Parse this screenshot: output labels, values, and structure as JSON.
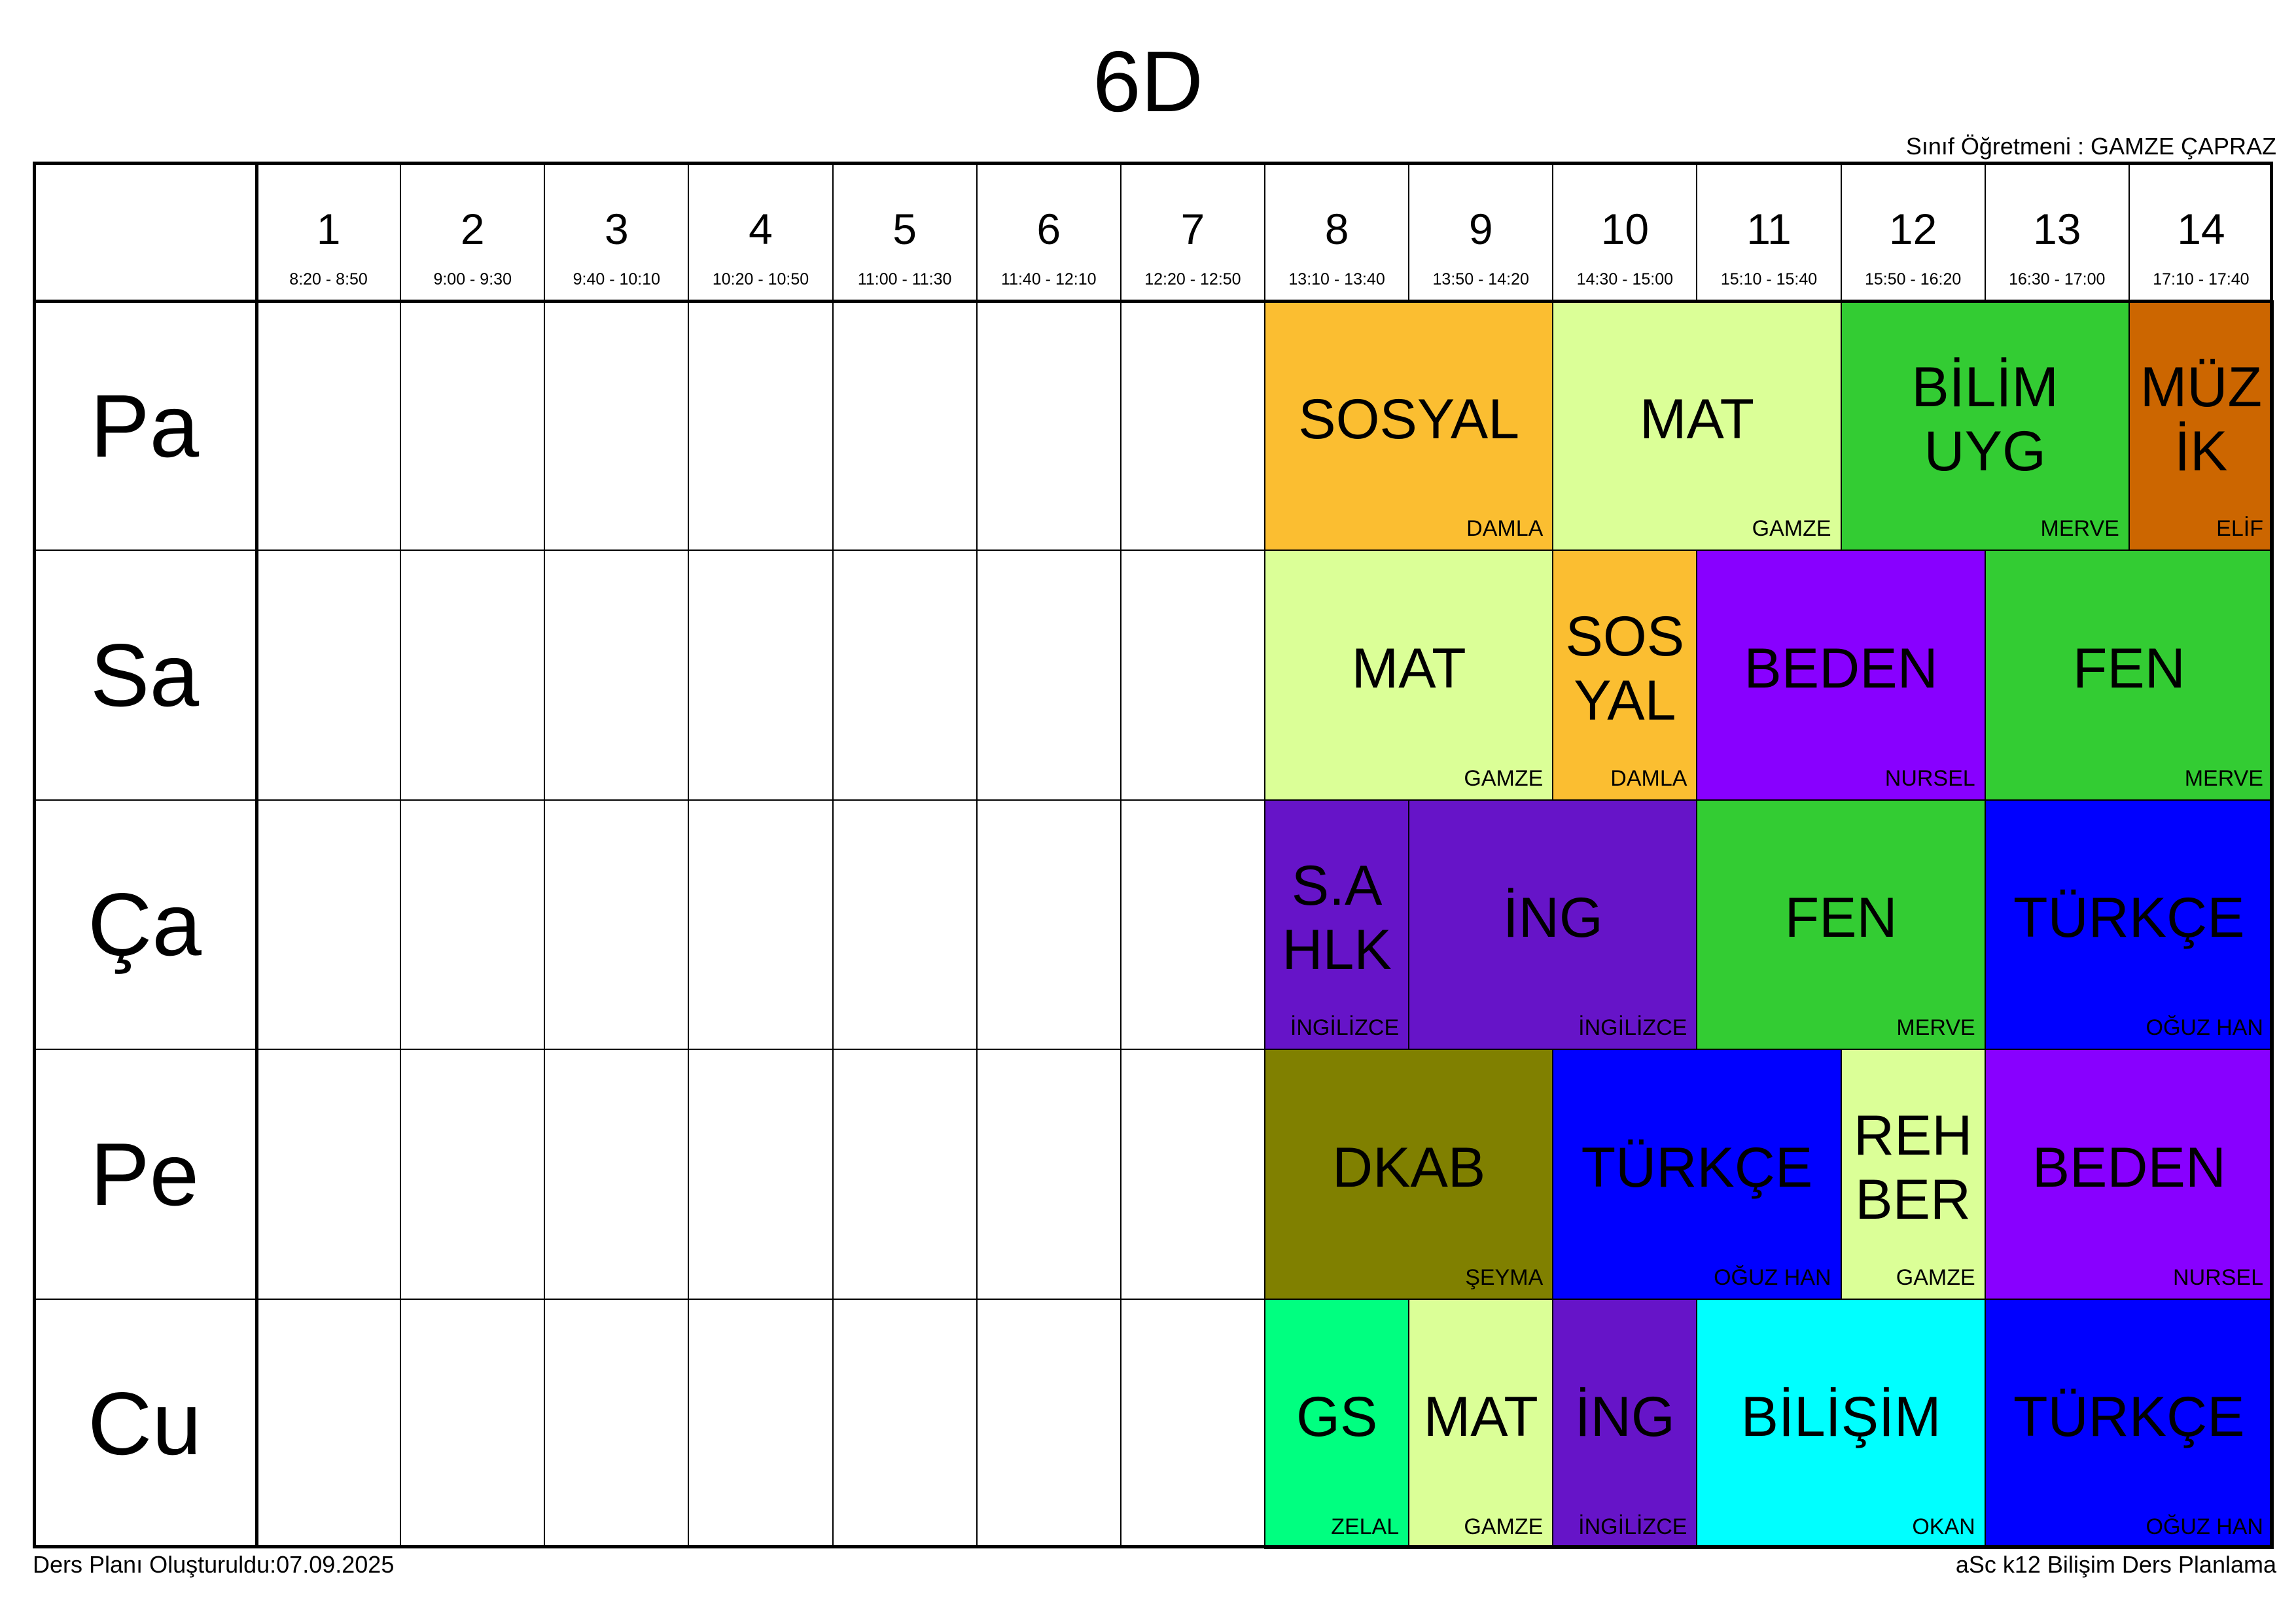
{
  "title": "6D",
  "class_teacher": "Sınıf Öğretmeni : GAMZE ÇAPRAZ",
  "footer_left": "Ders Planı Oluşturuldu:07.09.2025",
  "footer_right": "aSc k12 Bilişim Ders Planlama",
  "periods": [
    {
      "num": "1",
      "time": "8:20 - 8:50"
    },
    {
      "num": "2",
      "time": "9:00 - 9:30"
    },
    {
      "num": "3",
      "time": "9:40 - 10:10"
    },
    {
      "num": "4",
      "time": "10:20 - 10:50"
    },
    {
      "num": "5",
      "time": "11:00 - 11:30"
    },
    {
      "num": "6",
      "time": "11:40 - 12:10"
    },
    {
      "num": "7",
      "time": "12:20 - 12:50"
    },
    {
      "num": "8",
      "time": "13:10 - 13:40"
    },
    {
      "num": "9",
      "time": "13:50 - 14:20"
    },
    {
      "num": "10",
      "time": "14:30 - 15:00"
    },
    {
      "num": "11",
      "time": "15:10 - 15:40"
    },
    {
      "num": "12",
      "time": "15:50 - 16:20"
    },
    {
      "num": "13",
      "time": "16:30 - 17:00"
    },
    {
      "num": "14",
      "time": "17:10 - 17:40"
    }
  ],
  "days": [
    "Pa",
    "Sa",
    "Ça",
    "Pe",
    "Cu"
  ],
  "lessons": [
    {
      "day": 0,
      "start": 8,
      "span": 2,
      "subject": "SOSYAL",
      "teacher": "DAMLA",
      "color": "#FBBE31"
    },
    {
      "day": 0,
      "start": 10,
      "span": 2,
      "subject": "MAT",
      "teacher": "GAMZE",
      "color": "#DBFF97"
    },
    {
      "day": 0,
      "start": 12,
      "span": 2,
      "subject": "BİLİM\nUYG",
      "teacher": "MERVE",
      "color": "#33CC33"
    },
    {
      "day": 0,
      "start": 14,
      "span": 1,
      "subject": "MÜZ\nİK",
      "teacher": "ELİF",
      "color": "#CC6600"
    },
    {
      "day": 1,
      "start": 8,
      "span": 2,
      "subject": "MAT",
      "teacher": "GAMZE",
      "color": "#DBFF97"
    },
    {
      "day": 1,
      "start": 10,
      "span": 1,
      "subject": "SOS\nYAL",
      "teacher": "DAMLA",
      "color": "#FBBE31"
    },
    {
      "day": 1,
      "start": 11,
      "span": 2,
      "subject": "BEDEN",
      "teacher": "NURSEL",
      "color": "#8800FF"
    },
    {
      "day": 1,
      "start": 13,
      "span": 2,
      "subject": "FEN",
      "teacher": "MERVE",
      "color": "#33CC33"
    },
    {
      "day": 2,
      "start": 8,
      "span": 1,
      "subject": "S.A\nHLK",
      "teacher": "İNGİLİZCE",
      "color": "#6614C8"
    },
    {
      "day": 2,
      "start": 9,
      "span": 2,
      "subject": "İNG",
      "teacher": "İNGİLİZCE",
      "color": "#6614C8"
    },
    {
      "day": 2,
      "start": 11,
      "span": 2,
      "subject": "FEN",
      "teacher": "MERVE",
      "color": "#33CC33"
    },
    {
      "day": 2,
      "start": 13,
      "span": 2,
      "subject": "TÜRKÇE",
      "teacher": "OĞUZ HAN",
      "color": "#0000FF"
    },
    {
      "day": 3,
      "start": 8,
      "span": 2,
      "subject": "DKAB",
      "teacher": "ŞEYMA",
      "color": "#808000"
    },
    {
      "day": 3,
      "start": 10,
      "span": 2,
      "subject": "TÜRKÇE",
      "teacher": "OĞUZ HAN",
      "color": "#0000FF"
    },
    {
      "day": 3,
      "start": 12,
      "span": 1,
      "subject": "REH\nBER",
      "teacher": "GAMZE",
      "color": "#DBFF97"
    },
    {
      "day": 3,
      "start": 13,
      "span": 2,
      "subject": "BEDEN",
      "teacher": "NURSEL",
      "color": "#8800FF"
    },
    {
      "day": 4,
      "start": 8,
      "span": 1,
      "subject": "GS",
      "teacher": "ZELAL",
      "color": "#00FF80"
    },
    {
      "day": 4,
      "start": 9,
      "span": 1,
      "subject": "MAT",
      "teacher": "GAMZE",
      "color": "#DBFF97"
    },
    {
      "day": 4,
      "start": 10,
      "span": 1,
      "subject": "İNG",
      "teacher": "İNGİLİZCE",
      "color": "#6614C8"
    },
    {
      "day": 4,
      "start": 11,
      "span": 2,
      "subject": "BİLİŞİM",
      "teacher": "OKAN",
      "color": "#00FFFF"
    },
    {
      "day": 4,
      "start": 13,
      "span": 2,
      "subject": "TÜRKÇE",
      "teacher": "OĞUZ HAN",
      "color": "#0000FF"
    }
  ]
}
